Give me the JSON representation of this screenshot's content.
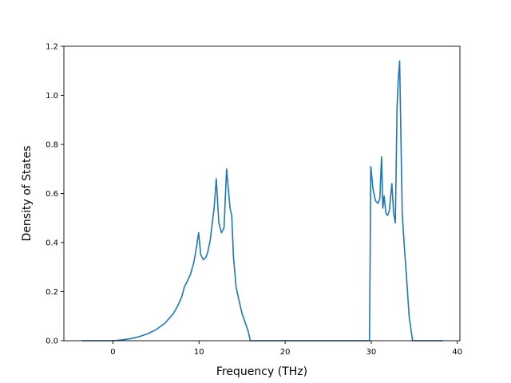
{
  "chart_data": {
    "type": "line",
    "title": "",
    "xlabel": "Frequency (THz)",
    "ylabel": "Density of States",
    "xlim": [
      -5.7,
      40.3
    ],
    "ylim": [
      0.0,
      1.2
    ],
    "xticks": [
      0,
      10,
      20,
      30,
      40
    ],
    "yticks": [
      0.0,
      0.2,
      0.4,
      0.6,
      0.8,
      1.0,
      1.2
    ],
    "xtick_labels": [
      "0",
      "10",
      "20",
      "30",
      "40"
    ],
    "ytick_labels": [
      "0.0",
      "0.2",
      "0.4",
      "0.6",
      "0.8",
      "1.0",
      "1.2"
    ],
    "grid": false,
    "line_color": "#1f77b4",
    "series": [
      {
        "x": [
          -3.6,
          -1.0,
          0.0,
          1.0,
          2.0,
          3.0,
          4.0,
          5.0,
          6.0,
          7.0,
          7.5,
          8.0,
          8.3,
          8.6,
          9.0,
          9.4,
          9.7,
          9.95,
          10.2,
          10.5,
          10.8,
          11.0,
          11.3,
          11.5,
          11.75,
          12.0,
          12.3,
          12.6,
          12.9,
          13.2,
          13.4,
          13.6,
          13.8,
          14.0,
          14.3,
          14.6,
          15.0,
          15.4,
          15.7,
          15.95,
          16.5,
          20.0,
          25.0,
          29.8,
          29.95,
          30.2,
          30.5,
          30.8,
          31.0,
          31.2,
          31.35,
          31.5,
          31.7,
          31.9,
          32.1,
          32.4,
          32.6,
          32.8,
          33.0,
          33.15,
          33.3,
          33.6,
          33.85,
          34.1,
          34.4,
          34.8,
          35.0,
          38.3
        ],
        "y": [
          0.0,
          0.0,
          0.0,
          0.003,
          0.008,
          0.016,
          0.028,
          0.045,
          0.07,
          0.11,
          0.14,
          0.18,
          0.22,
          0.24,
          0.27,
          0.32,
          0.38,
          0.44,
          0.35,
          0.33,
          0.34,
          0.36,
          0.41,
          0.47,
          0.54,
          0.66,
          0.48,
          0.44,
          0.46,
          0.7,
          0.62,
          0.54,
          0.51,
          0.34,
          0.22,
          0.17,
          0.11,
          0.07,
          0.04,
          0.0,
          0.0,
          0.0,
          0.0,
          0.0,
          0.71,
          0.62,
          0.57,
          0.56,
          0.58,
          0.75,
          0.54,
          0.59,
          0.52,
          0.51,
          0.53,
          0.64,
          0.52,
          0.48,
          0.95,
          1.07,
          1.14,
          0.52,
          0.38,
          0.26,
          0.1,
          0.0,
          0.0,
          0.0
        ]
      }
    ]
  }
}
